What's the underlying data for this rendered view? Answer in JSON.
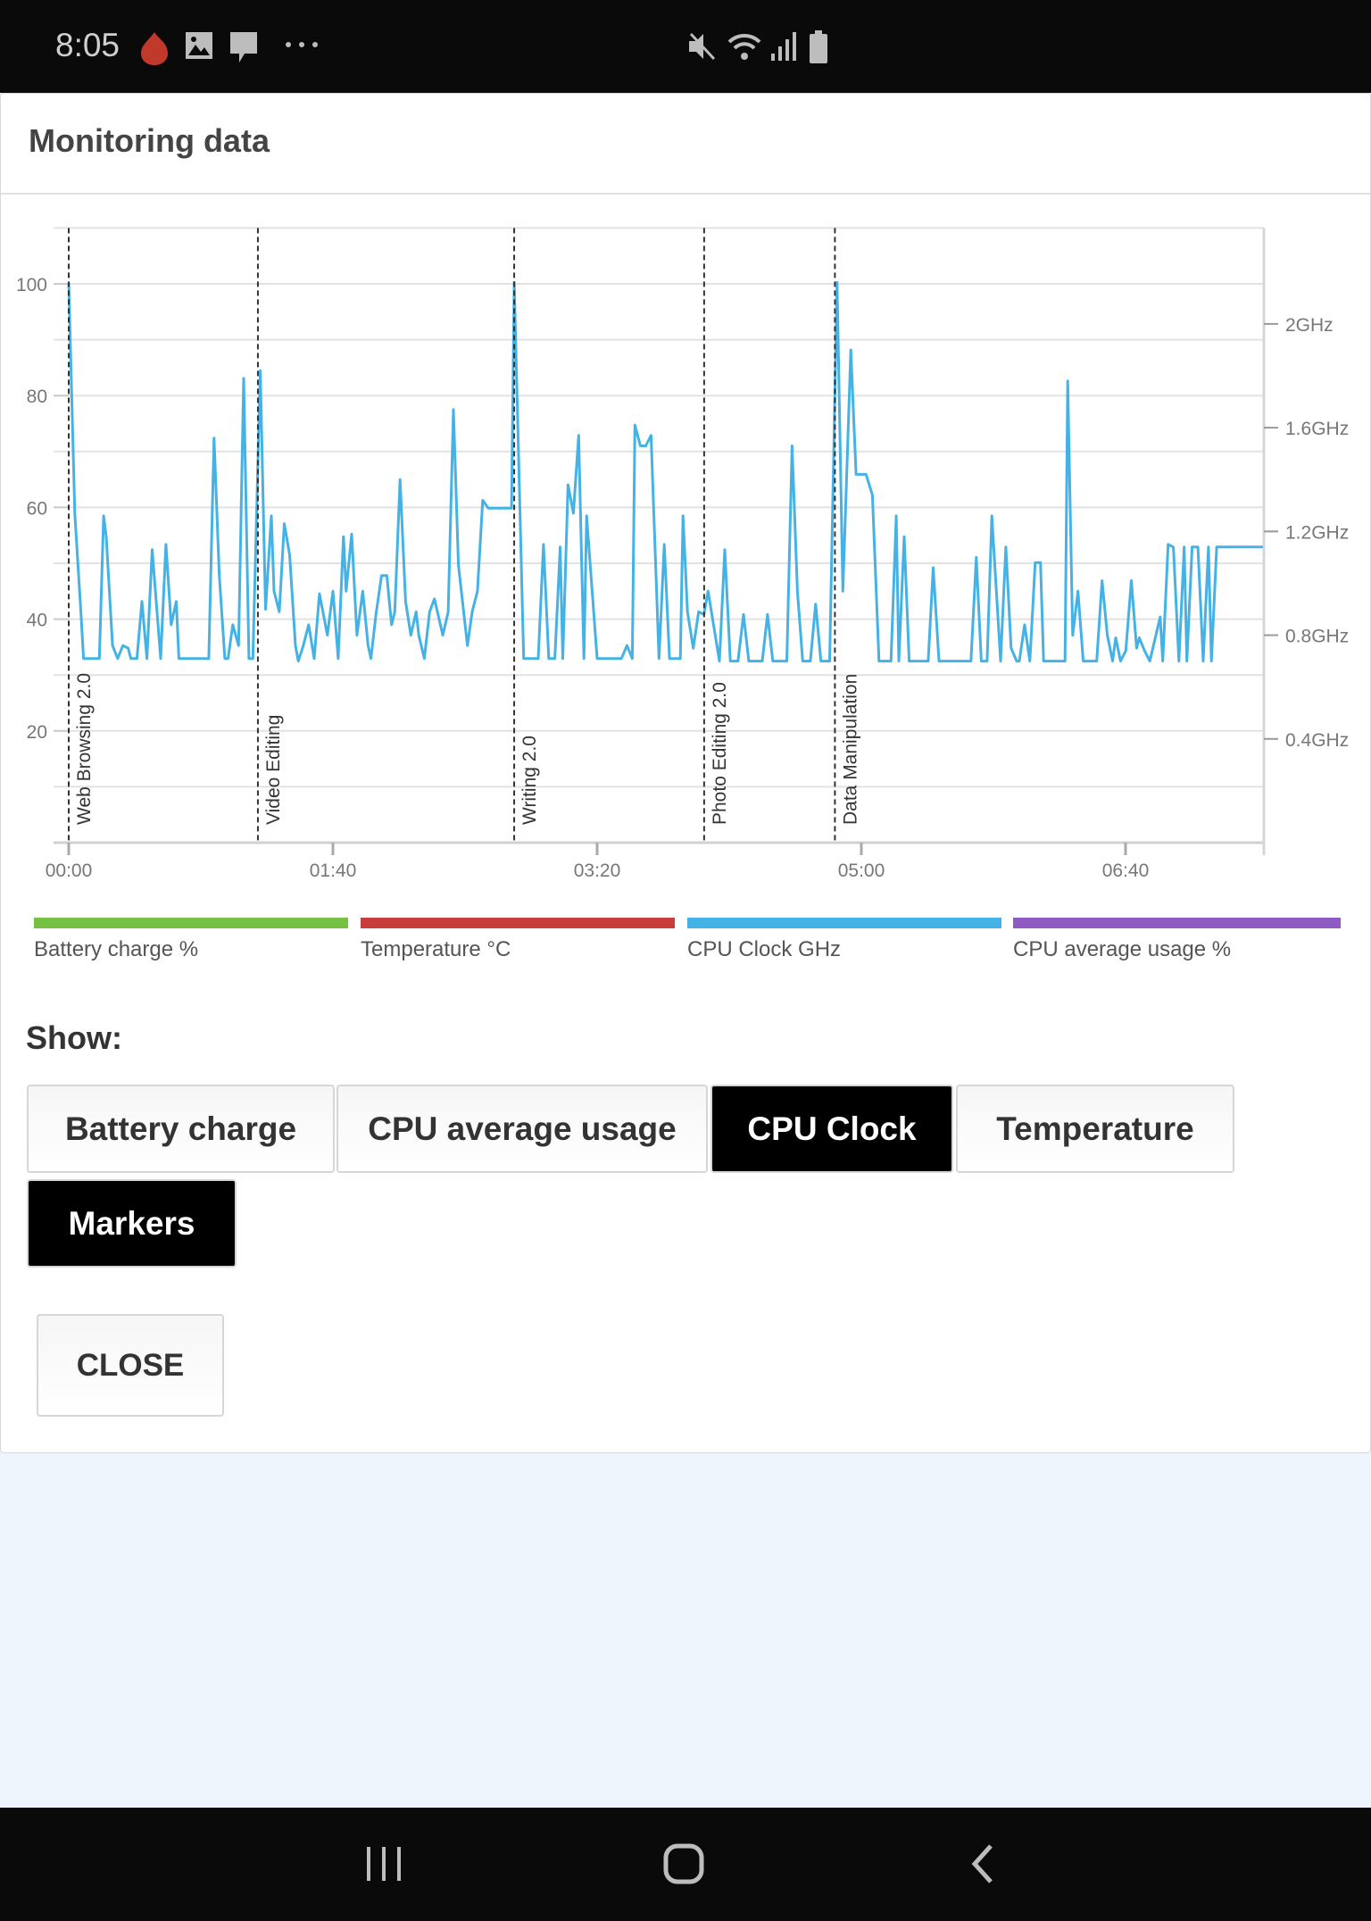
{
  "status_bar": {
    "time": "8:05",
    "left_icons": [
      "app-flame-icon",
      "image-icon",
      "message-icon",
      "more-dots-icon"
    ],
    "right_icons": [
      "mute-vibrate-icon",
      "wifi-icon",
      "signal-icon",
      "battery-icon"
    ]
  },
  "dialog": {
    "title": "Monitoring data",
    "show_label": "Show:",
    "toggles": [
      {
        "label": "Battery charge",
        "active": false
      },
      {
        "label": "CPU average usage",
        "active": false
      },
      {
        "label": "CPU Clock",
        "active": true
      },
      {
        "label": "Temperature",
        "active": false
      },
      {
        "label": "Markers",
        "active": true
      }
    ],
    "close_label": "CLOSE"
  },
  "legend": [
    {
      "label": "Battery charge %",
      "color": "#76c043"
    },
    {
      "label": "Temperature °C",
      "color": "#c83c3c"
    },
    {
      "label": "CPU Clock GHz",
      "color": "#45b2e6"
    },
    {
      "label": "CPU average usage %",
      "color": "#8e5bc2"
    }
  ],
  "chart_data": {
    "type": "line",
    "grid": true,
    "x_ticks": [
      "00:00",
      "01:40",
      "03:20",
      "05:00",
      "06:40"
    ],
    "x_tick_seconds": [
      0,
      100,
      200,
      300,
      400
    ],
    "xlim_seconds": [
      0,
      452
    ],
    "left_ylim": [
      0,
      110
    ],
    "left_ticks": [
      "20",
      "40",
      "60",
      "80",
      "100"
    ],
    "left_tick_values": [
      20,
      40,
      60,
      80,
      100
    ],
    "right_ylim_ghz": [
      0,
      2.37
    ],
    "right_ticks": [
      "0.4GHz",
      "0.8GHz",
      "1.2GHz",
      "1.6GHz",
      "2GHz"
    ],
    "right_tick_values": [
      0.4,
      0.8,
      1.2,
      1.6,
      2.0
    ],
    "markers": [
      {
        "label": "Web Browsing 2.0",
        "t": 0
      },
      {
        "label": "Video Editing",
        "t": 71.6
      },
      {
        "label": "Writing 2.0",
        "t": 168.6
      },
      {
        "label": "Photo Editing 2.0",
        "t": 240.5
      },
      {
        "label": "Data Manipulation",
        "t": 290
      }
    ],
    "series": [
      {
        "name": "CPU Clock GHz",
        "color": "#45b2e6",
        "points": [
          [
            0,
            2.16
          ],
          [
            2.3,
            1.27
          ],
          [
            4.6,
            0.89
          ],
          [
            5.6,
            0.71
          ],
          [
            11.6,
            0.71
          ],
          [
            13.2,
            1.26
          ],
          [
            14.2,
            1.18
          ],
          [
            16.6,
            0.76
          ],
          [
            18.5,
            0.71
          ],
          [
            20.5,
            0.76
          ],
          [
            22.5,
            0.75
          ],
          [
            23.5,
            0.71
          ],
          [
            25.8,
            0.71
          ],
          [
            27.7,
            0.93
          ],
          [
            29.6,
            0.71
          ],
          [
            31.6,
            1.13
          ],
          [
            34.8,
            0.71
          ],
          [
            36.8,
            1.15
          ],
          [
            38.8,
            0.84
          ],
          [
            40.7,
            0.93
          ],
          [
            41.7,
            0.71
          ],
          [
            53,
            0.71
          ],
          [
            55,
            1.56
          ],
          [
            57,
            1.03
          ],
          [
            59.1,
            0.71
          ],
          [
            60.3,
            0.71
          ],
          [
            62.1,
            0.84
          ],
          [
            64.3,
            0.76
          ],
          [
            66.2,
            1.79
          ],
          [
            68.2,
            0.71
          ],
          [
            69.7,
            0.71
          ],
          [
            72.5,
            1.82
          ],
          [
            74.5,
            0.9
          ],
          [
            76.7,
            1.26
          ],
          [
            77.7,
            0.97
          ],
          [
            79.7,
            0.89
          ],
          [
            81.6,
            1.23
          ],
          [
            83.6,
            1.11
          ],
          [
            85.8,
            0.76
          ],
          [
            86.9,
            0.7
          ],
          [
            88.8,
            0.76
          ],
          [
            90.8,
            0.84
          ],
          [
            92.9,
            0.71
          ],
          [
            94.9,
            0.96
          ],
          [
            97.9,
            0.8
          ],
          [
            100,
            0.97
          ],
          [
            102,
            0.71
          ],
          [
            104,
            1.18
          ],
          [
            105,
            0.97
          ],
          [
            107.1,
            1.19
          ],
          [
            109.1,
            0.8
          ],
          [
            111.3,
            0.97
          ],
          [
            113.3,
            0.76
          ],
          [
            114.4,
            0.71
          ],
          [
            116.3,
            0.88
          ],
          [
            118.4,
            1.03
          ],
          [
            120.4,
            1.03
          ],
          [
            122.2,
            0.84
          ],
          [
            123.4,
            0.89
          ],
          [
            125.4,
            1.4
          ],
          [
            127.5,
            0.93
          ],
          [
            129.5,
            0.8
          ],
          [
            131.5,
            0.89
          ],
          [
            132.5,
            0.8
          ],
          [
            134.6,
            0.71
          ],
          [
            136.6,
            0.89
          ],
          [
            138.4,
            0.94
          ],
          [
            141.6,
            0.8
          ],
          [
            143.6,
            0.89
          ],
          [
            145.6,
            1.67
          ],
          [
            147.5,
            1.07
          ],
          [
            150.9,
            0.76
          ],
          [
            152.7,
            0.89
          ],
          [
            154.7,
            0.97
          ],
          [
            156.7,
            1.32
          ],
          [
            158.8,
            1.29
          ],
          [
            167.6,
            1.29
          ],
          [
            168.6,
            2.16
          ],
          [
            172.2,
            0.71
          ],
          [
            177.7,
            0.71
          ],
          [
            179.7,
            1.15
          ],
          [
            181.7,
            0.71
          ],
          [
            184,
            0.71
          ],
          [
            186,
            1.14
          ],
          [
            187,
            0.71
          ],
          [
            189,
            1.38
          ],
          [
            191,
            1.27
          ],
          [
            193,
            1.57
          ],
          [
            195,
            0.71
          ],
          [
            196,
            1.26
          ],
          [
            200,
            0.71
          ],
          [
            209.2,
            0.71
          ],
          [
            211.3,
            0.76
          ],
          [
            213.3,
            0.71
          ],
          [
            214.3,
            1.61
          ],
          [
            216.4,
            1.53
          ],
          [
            218.4,
            1.53
          ],
          [
            220.4,
            1.57
          ],
          [
            223.4,
            0.71
          ],
          [
            225.4,
            1.15
          ],
          [
            227.4,
            0.71
          ],
          [
            231.5,
            0.71
          ],
          [
            232.5,
            1.26
          ],
          [
            234.2,
            0.89
          ],
          [
            236.4,
            0.75
          ],
          [
            238.4,
            0.89
          ],
          [
            240.4,
            0.88
          ],
          [
            242,
            0.97
          ],
          [
            246.3,
            0.7
          ],
          [
            248.3,
            1.13
          ],
          [
            250.4,
            0.7
          ],
          [
            253.3,
            0.7
          ],
          [
            255.4,
            0.88
          ],
          [
            257.4,
            0.7
          ],
          [
            262.5,
            0.7
          ],
          [
            264.5,
            0.88
          ],
          [
            266.5,
            0.7
          ],
          [
            271.8,
            0.7
          ],
          [
            273.8,
            1.53
          ],
          [
            275.8,
            0.97
          ],
          [
            277.8,
            0.7
          ],
          [
            280.7,
            0.7
          ],
          [
            282.7,
            0.92
          ],
          [
            284.7,
            0.7
          ],
          [
            288,
            0.7
          ],
          [
            290.8,
            2.16
          ],
          [
            293,
            0.97
          ],
          [
            296,
            1.9
          ],
          [
            298,
            1.42
          ],
          [
            301.8,
            1.42
          ],
          [
            304.2,
            1.34
          ],
          [
            306.7,
            0.7
          ],
          [
            311.2,
            0.7
          ],
          [
            313.2,
            1.26
          ],
          [
            314.2,
            0.7
          ],
          [
            316.2,
            1.18
          ],
          [
            318.1,
            0.7
          ],
          [
            325.3,
            0.7
          ],
          [
            327.2,
            1.06
          ],
          [
            329.4,
            0.7
          ],
          [
            341.5,
            0.7
          ],
          [
            343.5,
            1.1
          ],
          [
            345.4,
            0.7
          ],
          [
            347.6,
            0.7
          ],
          [
            349.4,
            1.26
          ],
          [
            352.7,
            0.7
          ],
          [
            354.7,
            1.14
          ],
          [
            356.7,
            0.75
          ],
          [
            358.8,
            0.7
          ],
          [
            359.8,
            0.7
          ],
          [
            361.8,
            0.84
          ],
          [
            363.8,
            0.7
          ],
          [
            365.8,
            1.08
          ],
          [
            367.8,
            1.08
          ],
          [
            369,
            0.7
          ],
          [
            377.1,
            0.7
          ],
          [
            378.1,
            1.78
          ],
          [
            380,
            0.8
          ],
          [
            382,
            0.97
          ],
          [
            384,
            0.7
          ],
          [
            389.1,
            0.7
          ],
          [
            391.1,
            1.01
          ],
          [
            393.1,
            0.8
          ],
          [
            395.1,
            0.7
          ],
          [
            396.3,
            0.79
          ],
          [
            398.1,
            0.7
          ],
          [
            400.1,
            0.74
          ],
          [
            402.2,
            1.01
          ],
          [
            404.2,
            0.75
          ],
          [
            405.2,
            0.79
          ],
          [
            407.2,
            0.74
          ],
          [
            409.2,
            0.7
          ],
          [
            413.1,
            0.87
          ],
          [
            414.1,
            0.7
          ],
          [
            416.1,
            1.15
          ],
          [
            418.1,
            1.14
          ],
          [
            420.2,
            0.7
          ],
          [
            422.2,
            1.14
          ],
          [
            423.2,
            0.7
          ],
          [
            425.2,
            1.14
          ],
          [
            427.4,
            1.14
          ],
          [
            429.4,
            0.7
          ],
          [
            431.4,
            1.14
          ],
          [
            432.5,
            0.7
          ],
          [
            434.5,
            1.14
          ],
          [
            452,
            1.14
          ]
        ]
      }
    ]
  }
}
